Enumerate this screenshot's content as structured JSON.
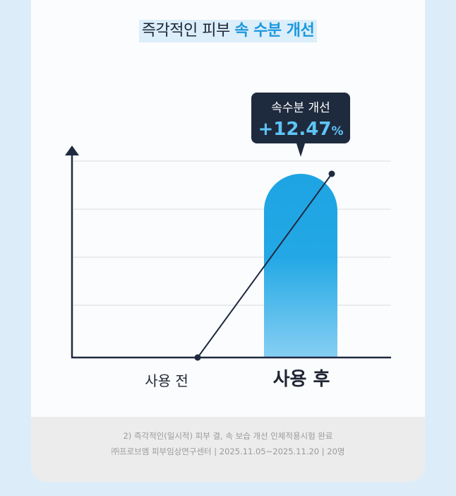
{
  "title": {
    "prefix": "즉각적인 피부",
    "highlight": "속 수분 개선"
  },
  "callout": {
    "label": "속수분 개선",
    "value": "+12.47",
    "unit": "%"
  },
  "colors": {
    "accent": "#1c98dd",
    "bar_top": "#1ea4e3",
    "bar_bottom": "#86cff3",
    "axis": "#1f2a40",
    "callout_bg": "#1e2a3d"
  },
  "chart_data": {
    "type": "bar",
    "categories": [
      "사용 전",
      "사용 후"
    ],
    "values": [
      0,
      12.47
    ],
    "unit": "%",
    "grid": true,
    "ylim": [
      0,
      12.47
    ],
    "annotation": "+12.47%"
  },
  "footer": {
    "line1": "2) 즉각적인(일시적) 피부 결, 속 보습 개선 인체적용시험 완료",
    "line2": "㈜프로브엠 피부임상연구센터  |  2025.11.05~2025.11.20  |  20명"
  }
}
